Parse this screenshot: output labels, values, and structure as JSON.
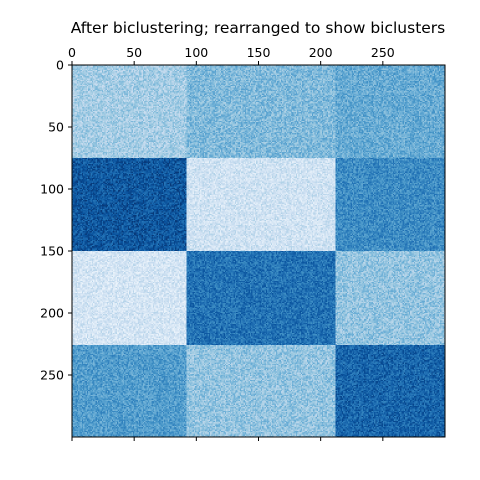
{
  "chart_data": {
    "type": "heatmap",
    "title": "After biclustering; rearranged to show biclusters",
    "xlabel": "",
    "ylabel": "",
    "xlim": [
      0,
      300
    ],
    "ylim": [
      300,
      0
    ],
    "x_axis_position": "top",
    "y_axis_inverted": true,
    "grid": false,
    "x_ticks": [
      0,
      50,
      100,
      150,
      200,
      250
    ],
    "x_tick_labels": [
      "0",
      "50",
      "100",
      "150",
      "200",
      "250"
    ],
    "y_ticks": [
      0,
      50,
      100,
      150,
      200,
      250
    ],
    "y_tick_labels": [
      "0",
      "50",
      "100",
      "150",
      "200",
      "250"
    ],
    "colormap": "Blues",
    "color_range": [
      0,
      1
    ],
    "noise_amplitude": 0.12,
    "column_bounds": [
      0,
      92,
      212,
      300
    ],
    "row_bounds": [
      0,
      75,
      150,
      226,
      300
    ],
    "block_intensities": [
      [
        0.35,
        0.45,
        0.52
      ],
      [
        0.85,
        0.2,
        0.65
      ],
      [
        0.18,
        0.75,
        0.4
      ],
      [
        0.58,
        0.4,
        0.8
      ]
    ]
  }
}
